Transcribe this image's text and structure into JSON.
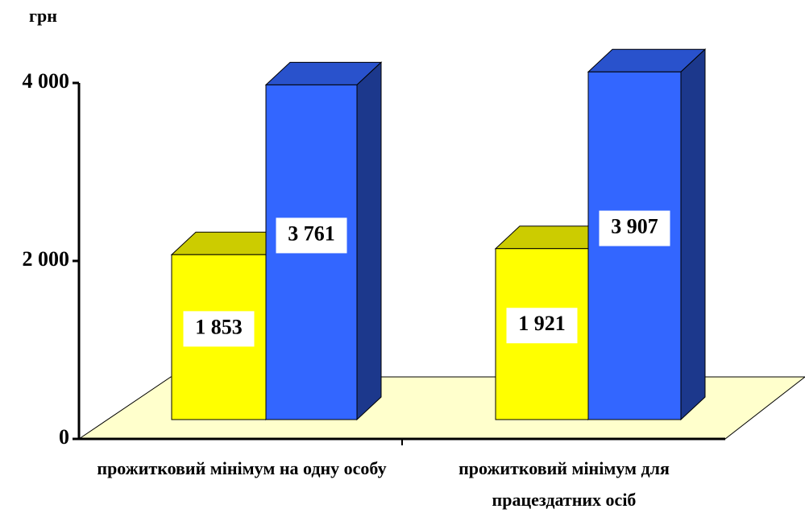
{
  "chart_data": {
    "type": "bar3d",
    "y_label": "грн",
    "categories": [
      "прожитковий мінімум на одну особу",
      "прожитковий мінімум для працездатних осіб"
    ],
    "series": [
      {
        "color": "#ffff00",
        "values": [
          1853,
          1921
        ],
        "value_labels": [
          "1 853",
          "1 921"
        ]
      },
      {
        "color": "#3366ff",
        "values": [
          3761,
          3907
        ],
        "value_labels": [
          "3 761",
          "3 907"
        ]
      }
    ],
    "ylim": [
      0,
      4000
    ],
    "yticks": [
      0,
      {
        "value": 2000,
        "label": "2 000"
      },
      {
        "value": 4000,
        "label": "4 000"
      }
    ],
    "floor_color": "#ffffcc"
  }
}
